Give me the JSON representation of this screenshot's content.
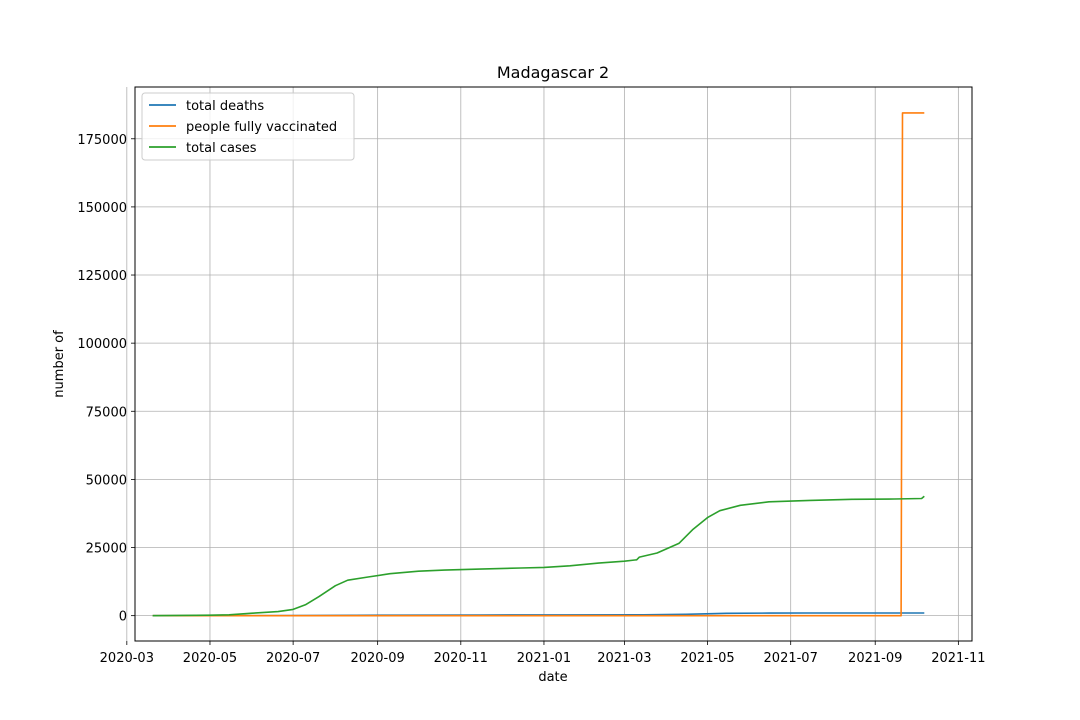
{
  "chart_data": {
    "type": "line",
    "title": "Madagascar 2",
    "xlabel": "date",
    "ylabel": "number of",
    "x_axis": "date",
    "xlim": [
      "2020-03-07",
      "2021-11-11"
    ],
    "ylim": [
      -9300,
      194000
    ],
    "grid": true,
    "legend_position": "top-left",
    "x_ticks": [
      "2020-03",
      "2020-05",
      "2020-07",
      "2020-09",
      "2020-11",
      "2021-01",
      "2021-03",
      "2021-05",
      "2021-07",
      "2021-09",
      "2021-11"
    ],
    "y_ticks": [
      0,
      25000,
      50000,
      75000,
      100000,
      125000,
      150000,
      175000
    ],
    "series": [
      {
        "name": "total deaths",
        "color": "#1f77b4",
        "points": [
          [
            "2020-03-20",
            0
          ],
          [
            "2020-05-15",
            0
          ],
          [
            "2020-07-01",
            20
          ],
          [
            "2020-08-15",
            130
          ],
          [
            "2020-09-15",
            180
          ],
          [
            "2020-11-15",
            240
          ],
          [
            "2021-01-15",
            260
          ],
          [
            "2021-03-15",
            300
          ],
          [
            "2021-04-15",
            500
          ],
          [
            "2021-05-15",
            850
          ],
          [
            "2021-06-15",
            950
          ],
          [
            "2021-07-15",
            960
          ],
          [
            "2021-09-15",
            960
          ],
          [
            "2021-10-07",
            960
          ]
        ]
      },
      {
        "name": "people fully vaccinated",
        "color": "#ff7f0e",
        "points": [
          [
            "2020-03-20",
            0
          ],
          [
            "2021-09-20",
            0
          ],
          [
            "2021-09-21",
            184500
          ],
          [
            "2021-10-07",
            184500
          ]
        ]
      },
      {
        "name": "total cases",
        "color": "#2ca02c",
        "points": [
          [
            "2020-03-20",
            0
          ],
          [
            "2020-05-01",
            150
          ],
          [
            "2020-05-15",
            300
          ],
          [
            "2020-06-01",
            900
          ],
          [
            "2020-06-20",
            1500
          ],
          [
            "2020-07-01",
            2300
          ],
          [
            "2020-07-10",
            4000
          ],
          [
            "2020-07-20",
            7000
          ],
          [
            "2020-08-01",
            11000
          ],
          [
            "2020-08-10",
            13000
          ],
          [
            "2020-08-25",
            14200
          ],
          [
            "2020-09-10",
            15400
          ],
          [
            "2020-10-01",
            16300
          ],
          [
            "2020-10-20",
            16700
          ],
          [
            "2020-11-15",
            17100
          ],
          [
            "2020-12-15",
            17500
          ],
          [
            "2021-01-01",
            17700
          ],
          [
            "2021-01-20",
            18300
          ],
          [
            "2021-02-10",
            19300
          ],
          [
            "2021-03-01",
            20000
          ],
          [
            "2021-03-10",
            20500
          ],
          [
            "2021-03-12",
            21500
          ],
          [
            "2021-03-25",
            23000
          ],
          [
            "2021-04-10",
            26500
          ],
          [
            "2021-04-20",
            31500
          ],
          [
            "2021-05-01",
            36000
          ],
          [
            "2021-05-10",
            38500
          ],
          [
            "2021-05-25",
            40500
          ],
          [
            "2021-06-15",
            41800
          ],
          [
            "2021-07-15",
            42300
          ],
          [
            "2021-08-15",
            42700
          ],
          [
            "2021-09-15",
            42800
          ],
          [
            "2021-10-05",
            43000
          ],
          [
            "2021-10-07",
            43800
          ]
        ]
      }
    ]
  }
}
